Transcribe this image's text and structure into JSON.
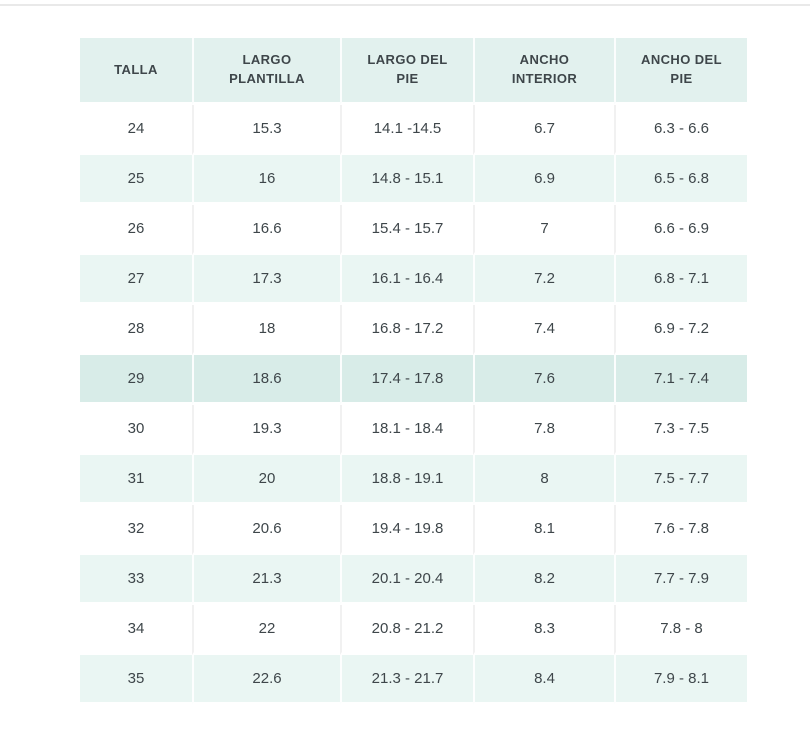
{
  "page": {
    "background": "#ffffff",
    "top_divider_color": "#e9e9e9"
  },
  "chart_data": {
    "type": "table",
    "columns": [
      "TALLA",
      "LARGO PLANTILLA",
      "LARGO DEL PIE",
      "ANCHO INTERIOR",
      "ANCHO DEL PIE"
    ],
    "rows": [
      [
        "24",
        "15.3",
        "14.1 -14.5",
        "6.7",
        "6.3 - 6.6"
      ],
      [
        "25",
        "16",
        "14.8 - 15.1",
        "6.9",
        "6.5 - 6.8"
      ],
      [
        "26",
        "16.6",
        "15.4 - 15.7",
        "7",
        "6.6 - 6.9"
      ],
      [
        "27",
        "17.3",
        "16.1 - 16.4",
        "7.2",
        "6.8 - 7.1"
      ],
      [
        "28",
        "18",
        "16.8 - 17.2",
        "7.4",
        "6.9 - 7.2"
      ],
      [
        "29",
        "18.6",
        "17.4 - 17.8",
        "7.6",
        "7.1 - 7.4"
      ],
      [
        "30",
        "19.3",
        "18.1 - 18.4",
        "7.8",
        "7.3 - 7.5"
      ],
      [
        "31",
        "20",
        "18.8 - 19.1",
        "8",
        "7.5 - 7.7"
      ],
      [
        "32",
        "20.6",
        "19.4 - 19.8",
        "8.1",
        "7.6 - 7.8"
      ],
      [
        "33",
        "21.3",
        "20.1 - 20.4",
        "8.2",
        "7.7 - 7.9"
      ],
      [
        "34",
        "22",
        "20.8 - 21.2",
        "8.3",
        "7.8 - 8"
      ],
      [
        "35",
        "22.6",
        "21.3 - 21.7",
        "8.4",
        "7.9 - 8.1"
      ]
    ],
    "highlighted_row_index": 5,
    "striping": "odd data rows tinted, even rows white",
    "grid": "thin vertical column dividers, white horizontal row gaps",
    "colors": {
      "header_bg": "#e2f1ee",
      "stripe_bg": "#eaf6f3",
      "highlight_bg": "#d8ece8",
      "text": "#3e464a"
    }
  }
}
